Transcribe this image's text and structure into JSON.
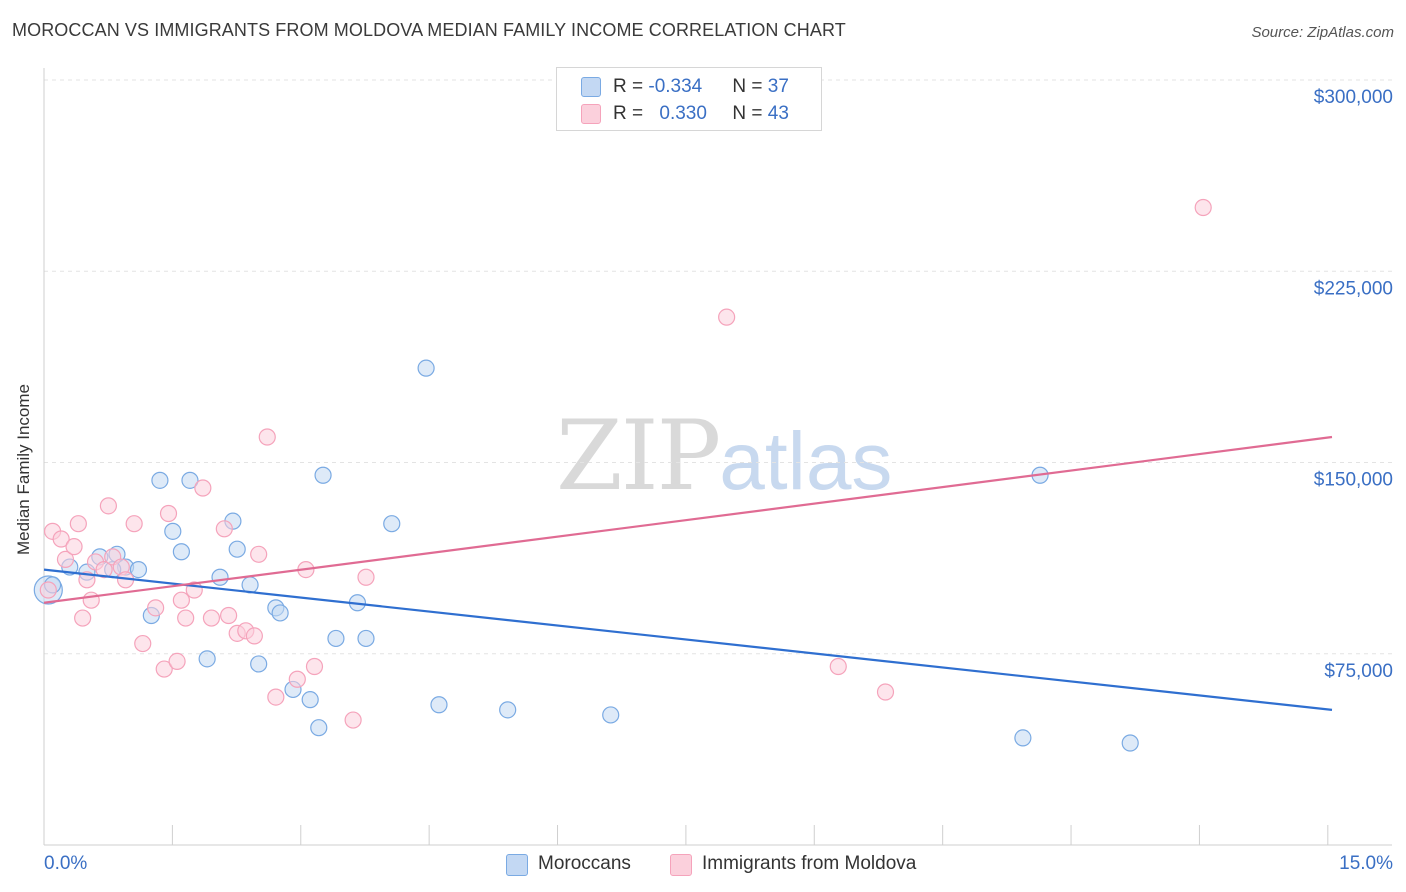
{
  "title": "MOROCCAN VS IMMIGRANTS FROM MOLDOVA MEDIAN FAMILY INCOME CORRELATION CHART",
  "source": "Source: ZipAtlas.com",
  "watermark": {
    "zip": "ZIP",
    "atlas": "atlas"
  },
  "legend": {
    "rows": [
      {
        "r_label": "R = ",
        "r_value": "-0.334",
        "n_label": "N = ",
        "n_value": "37",
        "color": "#aac8ee"
      },
      {
        "r_label": "R = ",
        "r_value": "0.330",
        "n_label": "N = ",
        "n_value": "43",
        "color": "#f5b8c9"
      }
    ]
  },
  "bottom_legend": [
    {
      "label": "Moroccans",
      "color": "#aac8ee"
    },
    {
      "label": "Immigrants from Moldova",
      "color": "#f5b8c9"
    }
  ],
  "chart_data": {
    "type": "scatter",
    "title": "MOROCCAN VS IMMIGRANTS FROM MOLDOVA MEDIAN FAMILY INCOME CORRELATION CHART",
    "xlabel": "",
    "ylabel": "Median Family Income",
    "xlim": [
      0,
      15
    ],
    "ylim": [
      0,
      300000
    ],
    "x_tick_labels": [
      "0.0%",
      "15.0%"
    ],
    "y_ticks": [
      75000,
      150000,
      225000,
      300000
    ],
    "y_tick_labels": [
      "$75,000",
      "$150,000",
      "$225,000",
      "$300,000"
    ],
    "grid": true,
    "legend_position": "top-center",
    "series": [
      {
        "name": "Moroccans",
        "color": "#7aaae3",
        "line_color": "#2f6fd0",
        "trend": {
          "x": [
            0,
            15
          ],
          "y": [
            108000,
            53000
          ]
        },
        "points": [
          [
            0.05,
            100000
          ],
          [
            0.1,
            102000
          ],
          [
            0.3,
            109000
          ],
          [
            0.5,
            107000
          ],
          [
            0.65,
            113000
          ],
          [
            0.85,
            114000
          ],
          [
            0.95,
            109000
          ],
          [
            0.8,
            108000
          ],
          [
            1.1,
            108000
          ],
          [
            1.25,
            90000
          ],
          [
            1.35,
            143000
          ],
          [
            1.5,
            123000
          ],
          [
            1.6,
            115000
          ],
          [
            1.7,
            143000
          ],
          [
            1.9,
            73000
          ],
          [
            2.05,
            105000
          ],
          [
            2.2,
            127000
          ],
          [
            2.25,
            116000
          ],
          [
            2.4,
            102000
          ],
          [
            2.5,
            71000
          ],
          [
            2.7,
            93000
          ],
          [
            2.75,
            91000
          ],
          [
            2.9,
            61000
          ],
          [
            3.1,
            57000
          ],
          [
            3.2,
            46000
          ],
          [
            3.25,
            145000
          ],
          [
            3.4,
            81000
          ],
          [
            3.65,
            95000
          ],
          [
            3.75,
            81000
          ],
          [
            4.05,
            126000
          ],
          [
            4.45,
            187000
          ],
          [
            4.6,
            55000
          ],
          [
            5.4,
            53000
          ],
          [
            6.6,
            51000
          ],
          [
            11.6,
            145000
          ],
          [
            11.4,
            42000
          ],
          [
            12.65,
            40000
          ]
        ]
      },
      {
        "name": "Immigrants from Moldova",
        "color": "#f5a3bb",
        "line_color": "#e06b93",
        "trend": {
          "x": [
            0,
            15
          ],
          "y": [
            95000,
            160000
          ]
        },
        "points": [
          [
            0.05,
            100000
          ],
          [
            0.1,
            123000
          ],
          [
            0.2,
            120000
          ],
          [
            0.25,
            112000
          ],
          [
            0.35,
            117000
          ],
          [
            0.4,
            126000
          ],
          [
            0.45,
            89000
          ],
          [
            0.5,
            104000
          ],
          [
            0.6,
            111000
          ],
          [
            0.7,
            108000
          ],
          [
            0.75,
            133000
          ],
          [
            0.8,
            113000
          ],
          [
            0.9,
            109000
          ],
          [
            0.95,
            104000
          ],
          [
            1.05,
            126000
          ],
          [
            1.15,
            79000
          ],
          [
            1.3,
            93000
          ],
          [
            1.4,
            69000
          ],
          [
            1.45,
            130000
          ],
          [
            1.55,
            72000
          ],
          [
            1.6,
            96000
          ],
          [
            1.65,
            89000
          ],
          [
            1.75,
            100000
          ],
          [
            1.85,
            140000
          ],
          [
            1.95,
            89000
          ],
          [
            2.1,
            124000
          ],
          [
            2.15,
            90000
          ],
          [
            2.25,
            83000
          ],
          [
            2.35,
            84000
          ],
          [
            2.45,
            82000
          ],
          [
            2.5,
            114000
          ],
          [
            2.6,
            160000
          ],
          [
            2.7,
            58000
          ],
          [
            2.95,
            65000
          ],
          [
            3.05,
            108000
          ],
          [
            3.15,
            70000
          ],
          [
            3.6,
            49000
          ],
          [
            3.75,
            105000
          ],
          [
            7.95,
            207000
          ],
          [
            9.25,
            70000
          ],
          [
            9.8,
            60000
          ],
          [
            13.5,
            250000
          ],
          [
            0.55,
            96000
          ]
        ]
      }
    ]
  }
}
